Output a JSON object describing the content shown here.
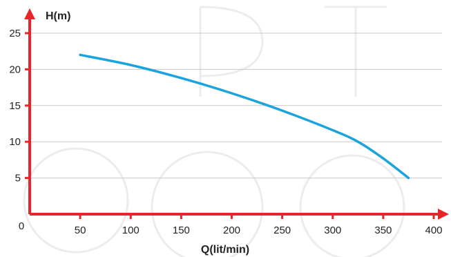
{
  "chart_data": {
    "type": "line",
    "title": "",
    "xlabel": "Q(lit/min)",
    "ylabel": "H(m)",
    "xlim": [
      0,
      400
    ],
    "ylim": [
      0,
      25
    ],
    "x_ticks": [
      0,
      50,
      100,
      150,
      200,
      250,
      300,
      350,
      400
    ],
    "x_tick_labels": [
      "0",
      "50",
      "100",
      "150",
      "200",
      "250",
      "300",
      "350",
      "400"
    ],
    "y_ticks": [
      5,
      10,
      15,
      20,
      25
    ],
    "y_tick_labels": [
      "5",
      "10",
      "15",
      "20",
      "25"
    ],
    "grid": "horizontal",
    "series": [
      {
        "x": [
          50,
          100,
          150,
          200,
          250,
          300,
          325,
          350,
          375
        ],
        "y": [
          22,
          20.6,
          18.8,
          16.7,
          14.3,
          11.6,
          10,
          7.7,
          5
        ]
      }
    ],
    "colors": {
      "axis": "#e8262a",
      "line": "#1aa3dc",
      "grid": "#c8c8c8"
    }
  }
}
